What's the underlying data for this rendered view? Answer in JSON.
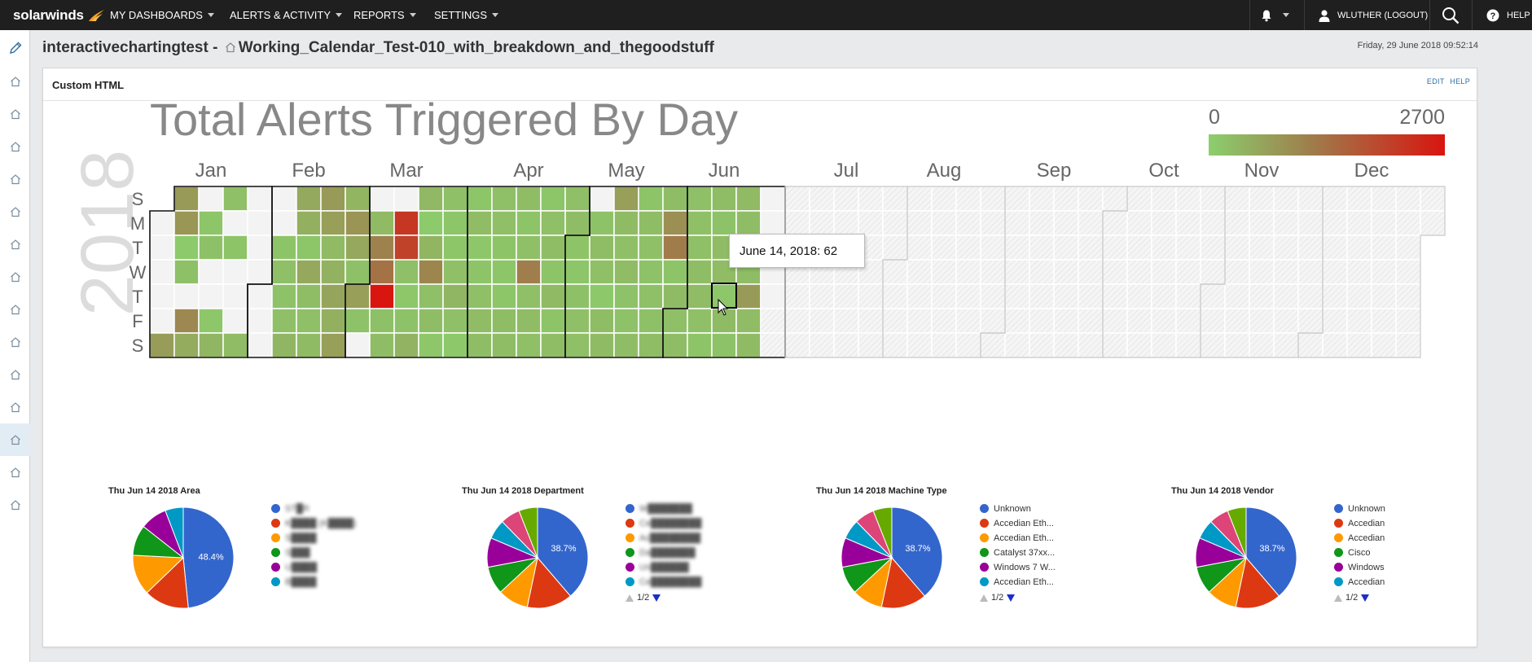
{
  "app": {
    "brand": "solarwinds",
    "nav": [
      {
        "label": "MY DASHBOARDS"
      },
      {
        "label": "ALERTS & ACTIVITY"
      },
      {
        "label": "REPORTS"
      },
      {
        "label": "SETTINGS"
      }
    ],
    "user_label": "WLUTHER (LOGOUT)",
    "help_label": "HELP",
    "icons": [
      "bell-icon",
      "user-icon",
      "search-icon",
      "help-icon",
      "pencil-icon",
      "home-icon"
    ]
  },
  "header": {
    "title_prefix": "interactivechartingtest -",
    "title_name": "Working_Calendar_Test-010_with_breakdown_and_thegoodstuff",
    "datetime": "Friday, 29 June 2018 09:52:14"
  },
  "panel": {
    "title": "Custom HTML",
    "edit_label": "EDIT",
    "help_label": "HELP"
  },
  "tooltip": "June 14, 2018: 62",
  "colors": {
    "scale_low": "#8bcf6d",
    "scale_mid": "#a07a4a",
    "scale_high": "#d8150f",
    "empty": "#f3f3f3"
  },
  "chart_data": [
    {
      "type": "heatmap",
      "title": "Total Alerts Triggered By Day",
      "year": "2018",
      "day_labels": [
        "S",
        "M",
        "T",
        "W",
        "T",
        "F",
        "S"
      ],
      "month_labels": [
        "Jan",
        "Feb",
        "Mar",
        "Apr",
        "May",
        "Jun",
        "Jul",
        "Aug",
        "Sep",
        "Oct",
        "Nov",
        "Dec"
      ],
      "legend_min": "0",
      "legend_max": "2700",
      "scale_range": [
        0,
        2700
      ],
      "weeks": [
        [
          null,
          null,
          null,
          null,
          null,
          null,
          400
        ],
        [
          420,
          450,
          40,
          110,
          0,
          560,
          280
        ],
        [
          0,
          70,
          110,
          0,
          0,
          60,
          200
        ],
        [
          120,
          0,
          90,
          0,
          0,
          0,
          150
        ],
        [
          0,
          0,
          0,
          0,
          0,
          0,
          0
        ],
        [
          0,
          0,
          90,
          130,
          100,
          120,
          200
        ],
        [
          300,
          250,
          80,
          310,
          140,
          130,
          160
        ],
        [
          420,
          380,
          170,
          240,
          330,
          250,
          380
        ],
        [
          210,
          470,
          310,
          110,
          380,
          100,
          0
        ],
        [
          0,
          170,
          610,
          830,
          2700,
          110,
          140
        ],
        [
          0,
          2030,
          1800,
          130,
          60,
          100,
          220
        ],
        [
          180,
          40,
          210,
          590,
          120,
          140,
          60
        ],
        [
          120,
          80,
          70,
          120,
          200,
          120,
          50
        ],
        [
          80,
          150,
          60,
          90,
          130,
          150,
          140
        ],
        [
          130,
          130,
          90,
          70,
          80,
          140,
          140
        ],
        [
          140,
          90,
          120,
          640,
          120,
          150,
          130
        ],
        [
          80,
          130,
          140,
          90,
          170,
          90,
          140
        ],
        [
          130,
          140,
          90,
          80,
          110,
          120,
          130
        ],
        [
          0,
          100,
          140,
          120,
          50,
          140,
          160
        ],
        [
          380,
          160,
          120,
          150,
          100,
          100,
          140
        ],
        [
          90,
          140,
          120,
          100,
          120,
          110,
          140
        ],
        [
          140,
          510,
          660,
          90,
          160,
          130,
          140
        ],
        [
          130,
          120,
          130,
          140,
          150,
          120,
          90
        ],
        [
          140,
          100,
          150,
          150,
          62,
          160,
          100
        ],
        [
          170,
          140,
          90,
          140,
          420,
          150,
          160
        ],
        [
          0,
          null,
          null,
          null,
          null,
          null,
          null
        ]
      ],
      "selected_date": "June 14, 2018",
      "selected_value": 62
    },
    {
      "type": "pie",
      "title": "Thu Jun 14 2018 Area",
      "slices": [
        {
          "label": "ST█R",
          "value": 48.4,
          "color": "#3366cc"
        },
        {
          "label": "K████ (K████)",
          "value": 14.4,
          "color": "#dc3912"
        },
        {
          "label": "S████",
          "value": 13.0,
          "color": "#ff9900"
        },
        {
          "label": "S███",
          "value": 9.8,
          "color": "#109618"
        },
        {
          "label": "U████",
          "value": 8.6,
          "color": "#990099"
        },
        {
          "label": "B████",
          "value": 5.8,
          "color": "#0099c6"
        }
      ],
      "center_label": "48.4%"
    },
    {
      "type": "pie",
      "title": "Thu Jun 14 2018 Department",
      "slices": [
        {
          "label": "W███████",
          "value": 38.7,
          "color": "#3366cc"
        },
        {
          "label": "Ce████████",
          "value": 14.6,
          "color": "#dc3912"
        },
        {
          "label": "Ac████████",
          "value": 9.8,
          "color": "#ff9900"
        },
        {
          "label": "Da███████",
          "value": 8.9,
          "color": "#109618"
        },
        {
          "label": "Un██████",
          "value": 9.4,
          "color": "#990099"
        },
        {
          "label": "Ce████████",
          "value": 6.3,
          "color": "#0099c6"
        },
        {
          "label": "",
          "value": 6.3,
          "color": "#dd4477"
        },
        {
          "label": "",
          "value": 6.0,
          "color": "#66aa00"
        }
      ],
      "center_label": "38.7%",
      "pager": "1/2"
    },
    {
      "type": "pie",
      "title": "Thu Jun 14 2018 Machine Type",
      "slices": [
        {
          "label": "Unknown",
          "value": 38.7,
          "color": "#3366cc"
        },
        {
          "label": "Accedian Eth...",
          "value": 14.6,
          "color": "#dc3912"
        },
        {
          "label": "Accedian Eth...",
          "value": 9.8,
          "color": "#ff9900"
        },
        {
          "label": "Catalyst 37xx...",
          "value": 8.9,
          "color": "#109618"
        },
        {
          "label": "Windows 7 W...",
          "value": 9.4,
          "color": "#990099"
        },
        {
          "label": "Accedian Eth...",
          "value": 6.3,
          "color": "#0099c6"
        },
        {
          "label": "",
          "value": 6.3,
          "color": "#dd4477"
        },
        {
          "label": "",
          "value": 6.0,
          "color": "#66aa00"
        }
      ],
      "center_label": "38.7%",
      "pager": "1/2"
    },
    {
      "type": "pie",
      "title": "Thu Jun 14 2018 Vendor",
      "slices": [
        {
          "label": "Unknown",
          "value": 38.7,
          "color": "#3366cc"
        },
        {
          "label": "Accedian",
          "value": 14.6,
          "color": "#dc3912"
        },
        {
          "label": "Accedian",
          "value": 9.8,
          "color": "#ff9900"
        },
        {
          "label": "Cisco",
          "value": 8.9,
          "color": "#109618"
        },
        {
          "label": "Windows",
          "value": 9.4,
          "color": "#990099"
        },
        {
          "label": "Accedian",
          "value": 6.3,
          "color": "#0099c6"
        },
        {
          "label": "",
          "value": 6.3,
          "color": "#dd4477"
        },
        {
          "label": "",
          "value": 6.0,
          "color": "#66aa00"
        }
      ],
      "center_label": "38.7%",
      "pager": "1/2"
    }
  ]
}
